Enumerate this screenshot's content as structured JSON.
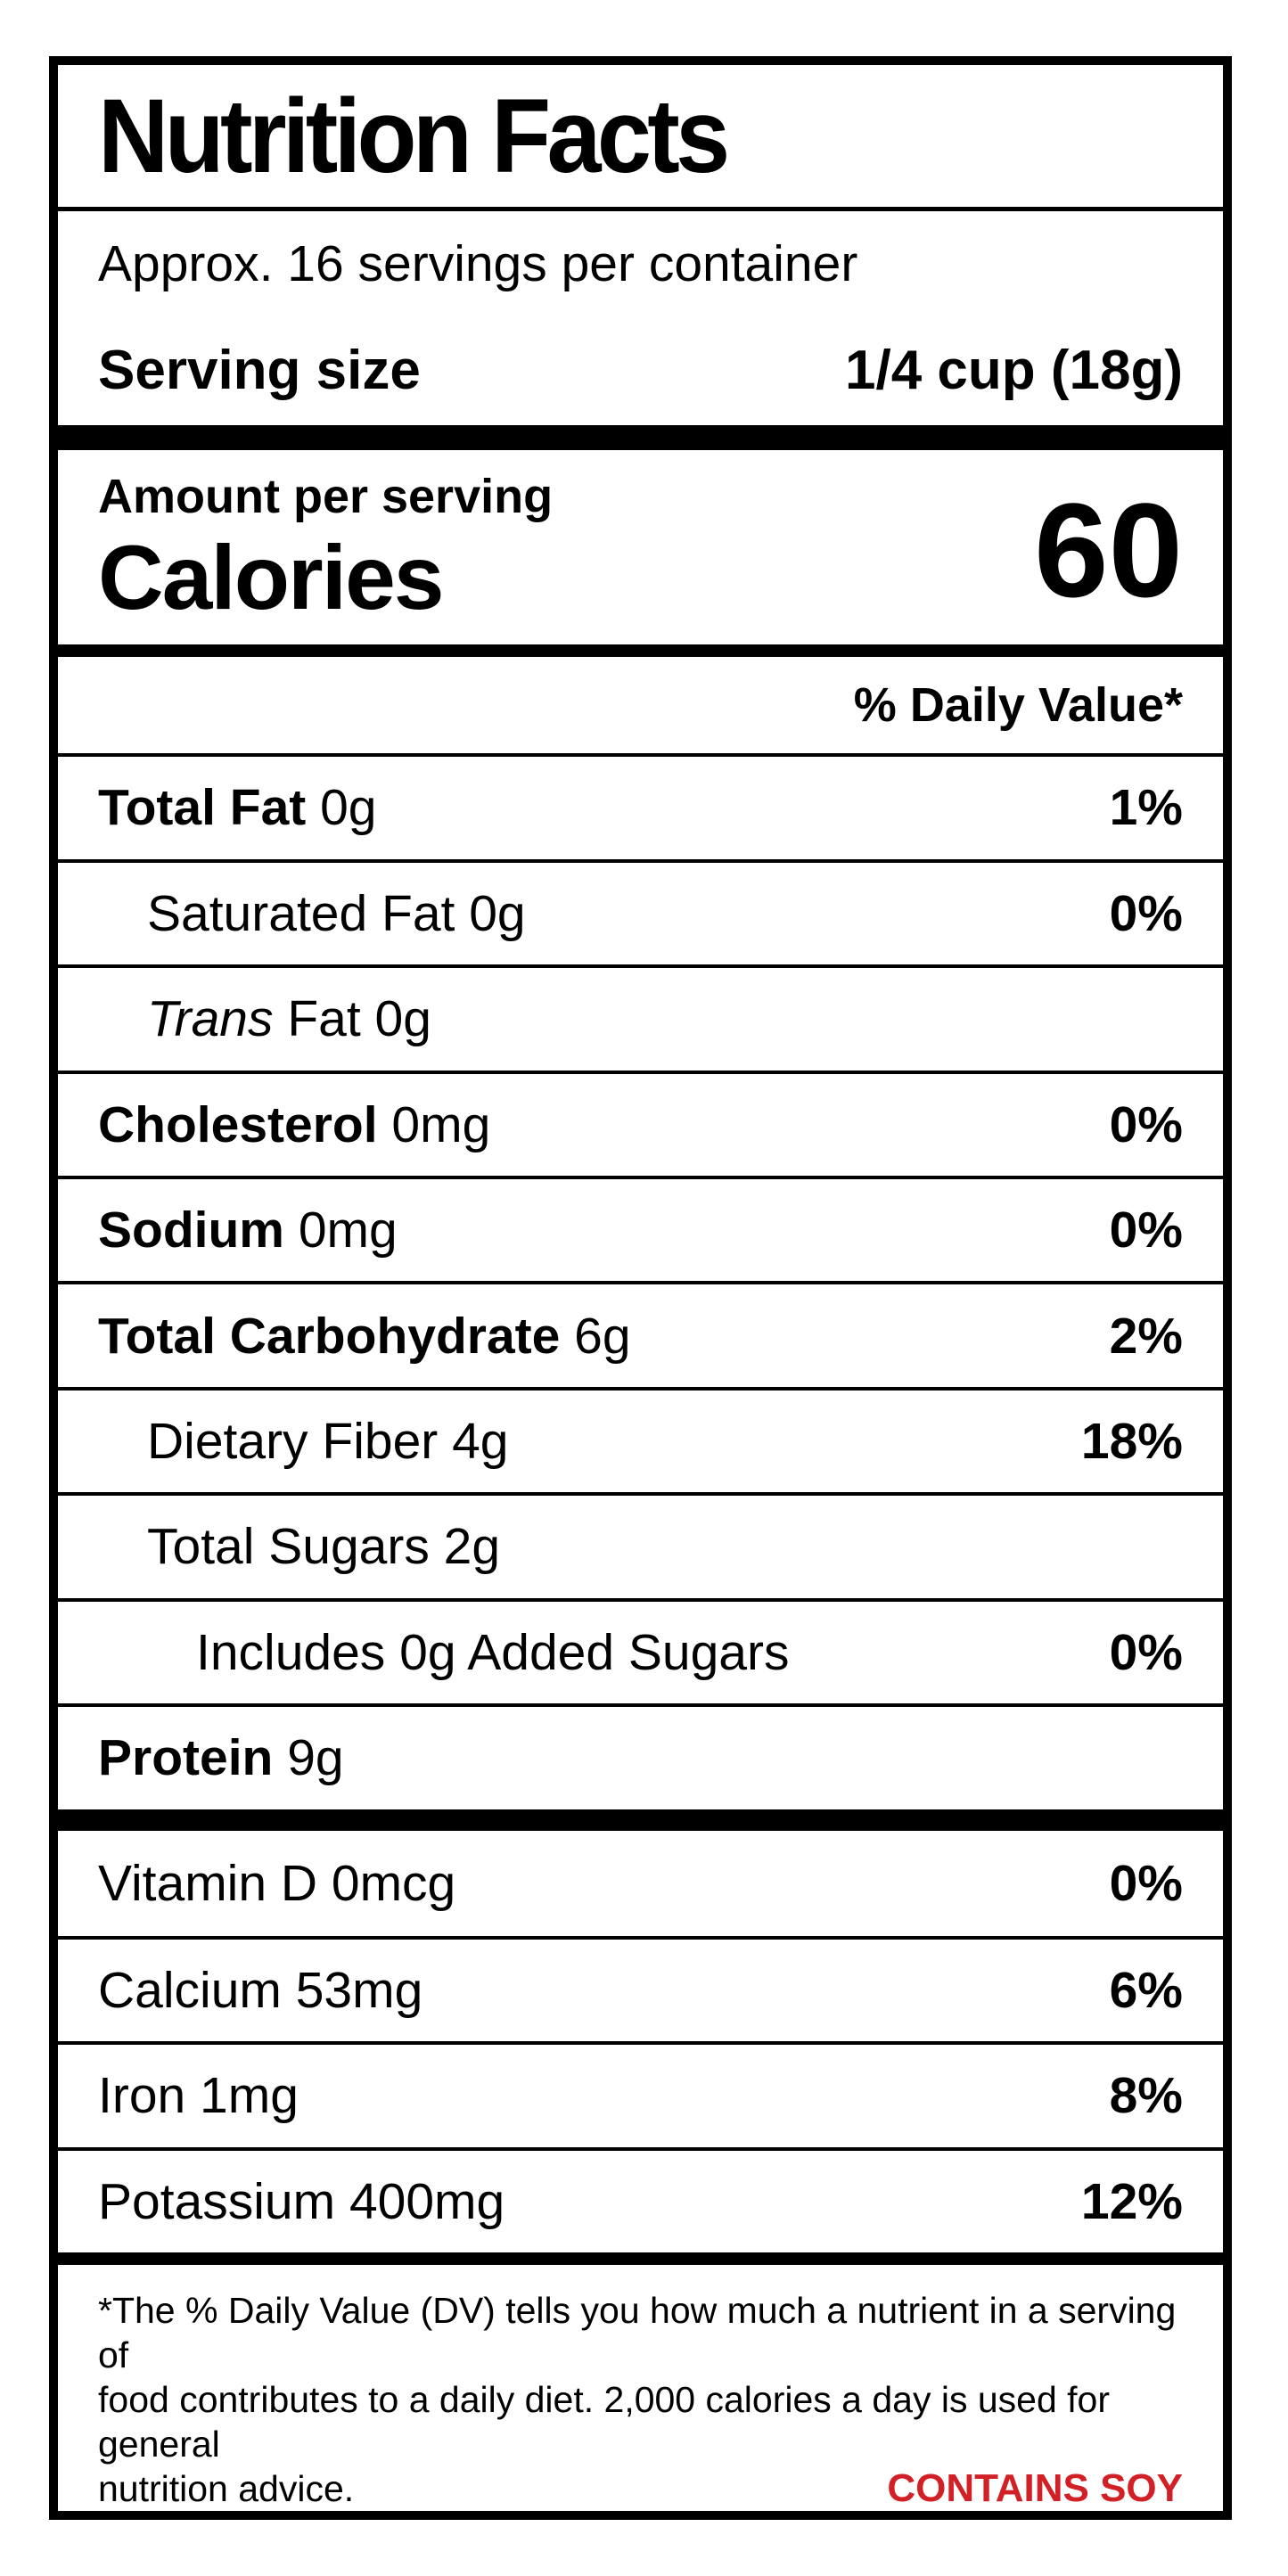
{
  "colors": {
    "ink": "#000000",
    "allergen": "#D22027"
  },
  "label": {
    "title": "Nutrition Facts",
    "servings_per_container": "Approx. 16 servings per container",
    "serving_size": {
      "label": "Serving size",
      "value": "1/4 cup (18g)"
    },
    "calories": {
      "amount_per_serving": "Amount per serving",
      "label": "Calories",
      "value": "60"
    },
    "daily_value_header": "% Daily Value*",
    "nutrients": [
      {
        "bold": "Total Fat",
        "text": " 0g",
        "dv": "1%",
        "indent": 0
      },
      {
        "text": "Saturated Fat 0g",
        "dv": "0%",
        "indent": 1
      },
      {
        "italic": "Trans",
        "text": " Fat 0g",
        "dv": "",
        "indent": 1
      },
      {
        "bold": "Cholesterol",
        "text": " 0mg",
        "dv": "0%",
        "indent": 0
      },
      {
        "bold": "Sodium",
        "text": " 0mg",
        "dv": "0%",
        "indent": 0
      },
      {
        "bold": "Total Carbohydrate",
        "text": " 6g",
        "dv": "2%",
        "indent": 0
      },
      {
        "text": "Dietary Fiber 4g",
        "dv": "18%",
        "indent": 1
      },
      {
        "text": "Total Sugars 2g",
        "dv": "",
        "indent": 1
      },
      {
        "text": "Includes 0g Added Sugars",
        "dv": "0%",
        "indent": 2
      },
      {
        "bold": "Protein",
        "text": " 9g",
        "dv": "",
        "indent": 0
      }
    ],
    "vitamins": [
      {
        "text": "Vitamin D 0mcg",
        "dv": "0%"
      },
      {
        "text": "Calcium 53mg",
        "dv": "6%"
      },
      {
        "text": "Iron 1mg",
        "dv": "8%"
      },
      {
        "text": "Potassium 400mg",
        "dv": "12%"
      }
    ],
    "footnote_lines": [
      "*The % Daily Value (DV) tells you how much a nutrient in a serving of",
      "food contributes to a daily diet. 2,000 calories a day is used for general",
      "nutrition advice."
    ],
    "allergen": "CONTAINS SOY"
  }
}
